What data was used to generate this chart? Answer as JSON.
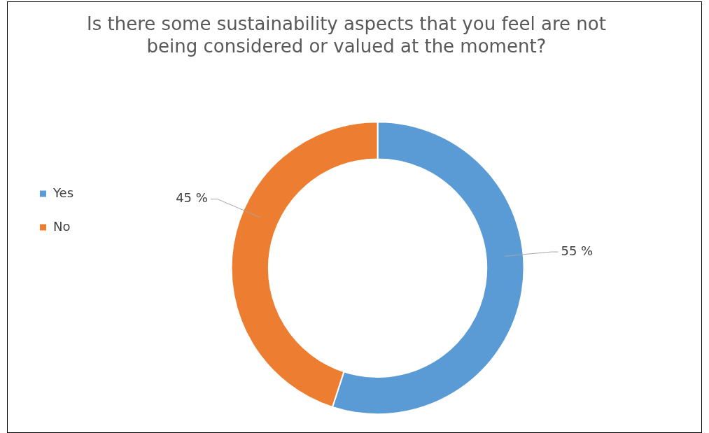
{
  "chart_data": {
    "type": "donut",
    "title": "Is there some sustainability aspects that you feel are not being considered or valued at the moment?",
    "categories": [
      "Yes",
      "No"
    ],
    "values": [
      55,
      45
    ],
    "colors": [
      "#5b9bd5",
      "#ed7d31"
    ],
    "value_labels": [
      "55 %",
      "45 %"
    ],
    "legend": "left"
  }
}
